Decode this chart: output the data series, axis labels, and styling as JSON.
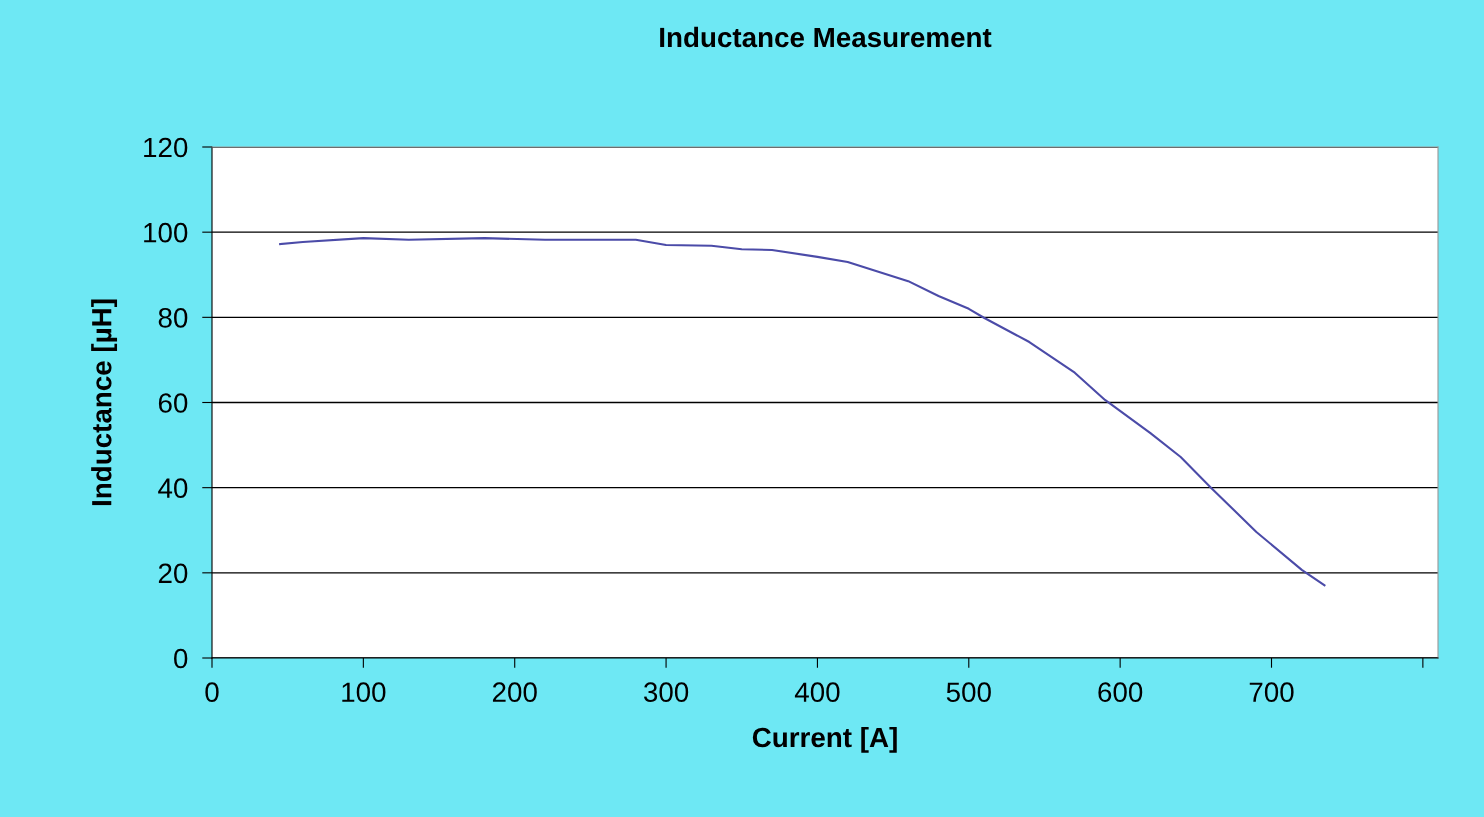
{
  "chart_data": {
    "type": "line",
    "title": "Inductance Measurement",
    "xlabel": "Current [A]",
    "ylabel": "Inductance [µH]",
    "x": [
      45,
      60,
      100,
      130,
      180,
      220,
      280,
      300,
      330,
      350,
      370,
      400,
      420,
      460,
      480,
      500,
      510,
      540,
      570,
      590,
      620,
      640,
      660,
      690,
      720,
      735
    ],
    "series": [
      {
        "color": "#4b4ba8",
        "values": [
          97.2,
          97.7,
          98.6,
          98.2,
          98.6,
          98.2,
          98.2,
          97,
          96.8,
          96,
          95.8,
          94.2,
          93,
          88.5,
          85,
          82,
          79.9,
          74.2,
          67,
          60.6,
          52.8,
          47.2,
          40,
          29.6,
          20.7,
          17.1
        ]
      }
    ],
    "xlim": [
      0,
      810
    ],
    "xticks": [
      0,
      100,
      200,
      300,
      400,
      500,
      600,
      700,
      {
        "value": 800,
        "label": null
      }
    ],
    "ylim": [
      0,
      120
    ],
    "yticks": [
      0,
      20,
      40,
      60,
      80,
      100,
      120
    ],
    "grid": "y",
    "legend": false,
    "marker": "none",
    "line_style": "solid"
  }
}
